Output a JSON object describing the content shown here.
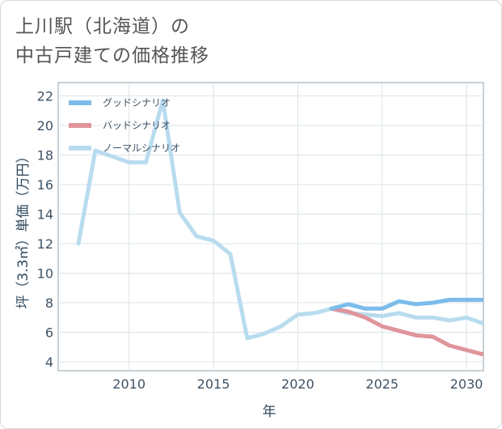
{
  "title": {
    "line1": "上川駅（北海道）の",
    "line2": "中古戸建ての価格推移"
  },
  "chart_data": {
    "type": "line",
    "xlabel": "年",
    "ylabel": "坪（3.3㎡）単価（万円）",
    "xlim": [
      2005.8,
      2031
    ],
    "ylim": [
      3.4,
      22.9
    ],
    "x_ticks": [
      2010,
      2015,
      2020,
      2025,
      2030
    ],
    "x_tick_labels": [
      "2010",
      "2015",
      "2020",
      "2025",
      "2030"
    ],
    "y_ticks": [
      4,
      6,
      8,
      10,
      12,
      14,
      16,
      18,
      20,
      22
    ],
    "y_tick_labels": [
      "4",
      "6",
      "8",
      "10",
      "12",
      "14",
      "16",
      "18",
      "20",
      "22"
    ],
    "grid": true,
    "legend_position": "top-left",
    "series": [
      {
        "name": "グッドシナリオ",
        "color": "#7bbcea",
        "x": [
          2022,
          2023,
          2024,
          2025,
          2026,
          2027,
          2028,
          2029,
          2030,
          2031
        ],
        "y": [
          7.6,
          7.9,
          7.6,
          7.6,
          8.1,
          7.9,
          8.0,
          8.2,
          8.2,
          8.2
        ]
      },
      {
        "name": "バッドシナリオ",
        "color": "#e0949b",
        "x": [
          2022,
          2023,
          2024,
          2025,
          2026,
          2027,
          2028,
          2029,
          2030,
          2031
        ],
        "y": [
          7.6,
          7.4,
          7.0,
          6.4,
          6.1,
          5.8,
          5.7,
          5.1,
          4.8,
          4.5
        ]
      },
      {
        "name": "ノーマルシナリオ",
        "color": "#b8dcee",
        "x": [
          2007,
          2008,
          2009,
          2010,
          2011,
          2012,
          2013,
          2014,
          2015,
          2016,
          2017,
          2018,
          2019,
          2020,
          2021,
          2022,
          2023,
          2024,
          2025,
          2026,
          2027,
          2028,
          2029,
          2030,
          2031
        ],
        "y": [
          12.0,
          18.3,
          17.9,
          17.5,
          17.5,
          21.7,
          14.1,
          12.5,
          12.2,
          11.3,
          5.6,
          5.9,
          6.4,
          7.2,
          7.3,
          7.6,
          7.3,
          7.2,
          7.1,
          7.3,
          7.0,
          7.0,
          6.8,
          7.0,
          6.6
        ]
      }
    ]
  }
}
